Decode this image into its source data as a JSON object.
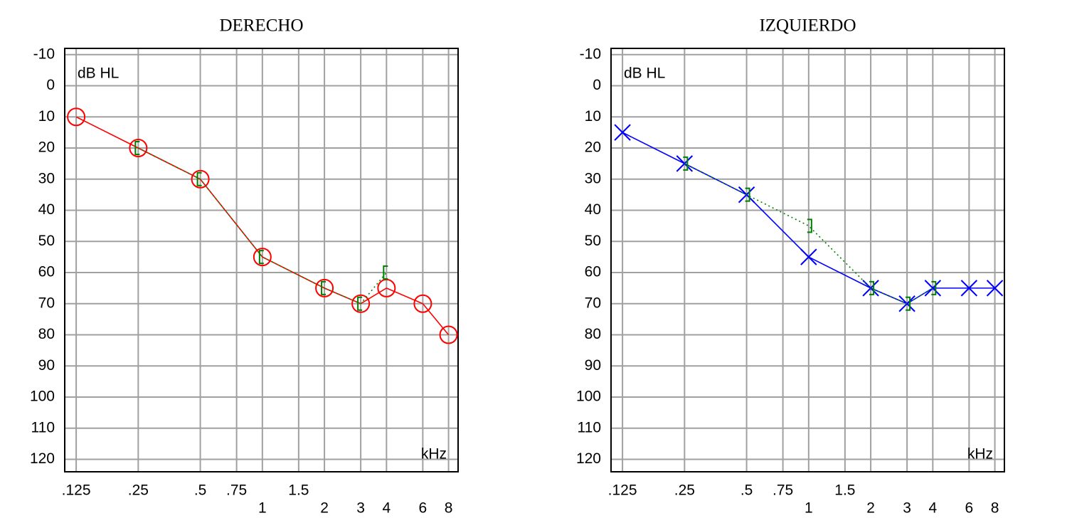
{
  "chart_data": [
    {
      "type": "line",
      "title": "DERECHO",
      "y_label": "dB HL",
      "x_label": "kHz",
      "x_scale": "log",
      "y_inverted": true,
      "grid": true,
      "xlim": [
        0.11,
        8.9
      ],
      "ylim": [
        -12,
        124
      ],
      "xticks": [
        {
          "value": 0.125,
          "label": ".125"
        },
        {
          "value": 0.25,
          "label": ".25"
        },
        {
          "value": 0.5,
          "label": ".5"
        },
        {
          "value": 0.75,
          "label": ".75"
        },
        1,
        1.5,
        2,
        3,
        4,
        6,
        8
      ],
      "yticks": [
        -10,
        0,
        10,
        20,
        30,
        40,
        50,
        60,
        70,
        80,
        90,
        100,
        110,
        120
      ],
      "series": [
        {
          "color": "#ff0000",
          "marker": "circle",
          "line_style": "solid",
          "x": [
            0.125,
            0.25,
            0.5,
            1,
            2,
            3,
            4,
            6,
            8
          ],
          "values": [
            10,
            20,
            30,
            55,
            65,
            70,
            65,
            70,
            80
          ]
        },
        {
          "color": "#008000",
          "marker": "bracket-left",
          "line_style": "dotted",
          "x": [
            0.25,
            0.5,
            1,
            2,
            3,
            4
          ],
          "values": [
            20,
            30,
            55,
            65,
            70,
            60
          ]
        }
      ]
    },
    {
      "type": "line",
      "title": "IZQUIERDO",
      "y_label": "dB HL",
      "x_label": "kHz",
      "x_scale": "log",
      "y_inverted": true,
      "grid": true,
      "xlim": [
        0.11,
        8.9
      ],
      "ylim": [
        -12,
        124
      ],
      "xticks": [
        {
          "value": 0.125,
          "label": ".125"
        },
        {
          "value": 0.25,
          "label": ".25"
        },
        {
          "value": 0.5,
          "label": ".5"
        },
        {
          "value": 0.75,
          "label": ".75"
        },
        1,
        1.5,
        2,
        3,
        4,
        6,
        8
      ],
      "yticks": [
        -10,
        0,
        10,
        20,
        30,
        40,
        50,
        60,
        70,
        80,
        90,
        100,
        110,
        120
      ],
      "series": [
        {
          "color": "#0000ff",
          "marker": "cross",
          "line_style": "solid",
          "x": [
            0.125,
            0.25,
            0.5,
            1,
            2,
            3,
            4,
            6,
            8
          ],
          "values": [
            15,
            25,
            35,
            55,
            65,
            70,
            65,
            65,
            65
          ]
        },
        {
          "color": "#008000",
          "marker": "bracket-right",
          "line_style": "dotted",
          "x": [
            0.25,
            0.5,
            1,
            2,
            3,
            4
          ],
          "values": [
            25,
            35,
            45,
            65,
            70,
            65
          ]
        }
      ]
    }
  ]
}
